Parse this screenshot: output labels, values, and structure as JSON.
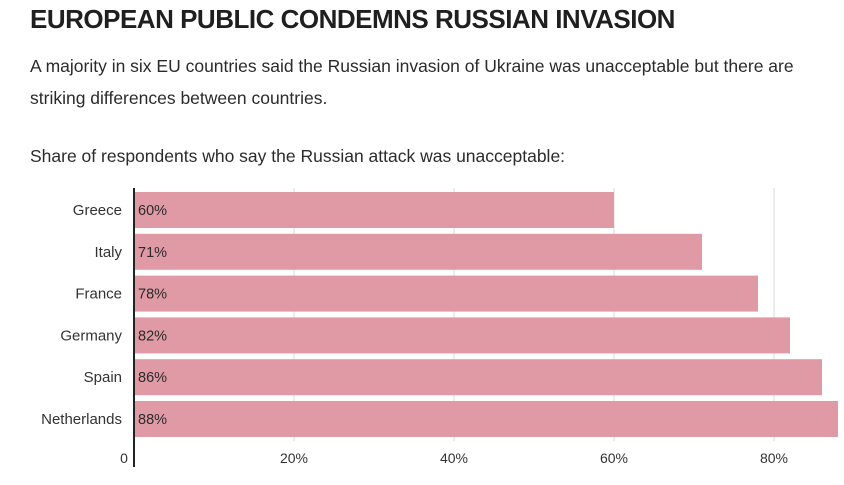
{
  "header": {
    "title": "EUROPEAN PUBLIC CONDEMNS RUSSIAN INVASION",
    "subtitle": "A majority in six EU countries said the Russian invasion of Ukraine was unacceptable but there are striking differences between countries.",
    "chart_heading": "Share of respondents who say the Russian attack was unacceptable:"
  },
  "colors": {
    "bar": "#e09aa6",
    "grid": "#d9d9d9",
    "axis": "#222222",
    "text": "#333333"
  },
  "chart_data": {
    "type": "bar",
    "orientation": "horizontal",
    "title": "Share of respondents who say the Russian attack was unacceptable:",
    "categories": [
      "Greece",
      "Italy",
      "France",
      "Germany",
      "Spain",
      "Netherlands"
    ],
    "values": [
      60,
      71,
      78,
      82,
      86,
      88
    ],
    "value_labels": [
      "60%",
      "71%",
      "78%",
      "82%",
      "86%",
      "88%"
    ],
    "xlim": [
      0,
      88
    ],
    "xticks": [
      0,
      20,
      40,
      60,
      80
    ],
    "xtick_labels": [
      "0",
      "20%",
      "40%",
      "60%",
      "80%"
    ],
    "grid": true,
    "xlabel": "",
    "ylabel": ""
  }
}
